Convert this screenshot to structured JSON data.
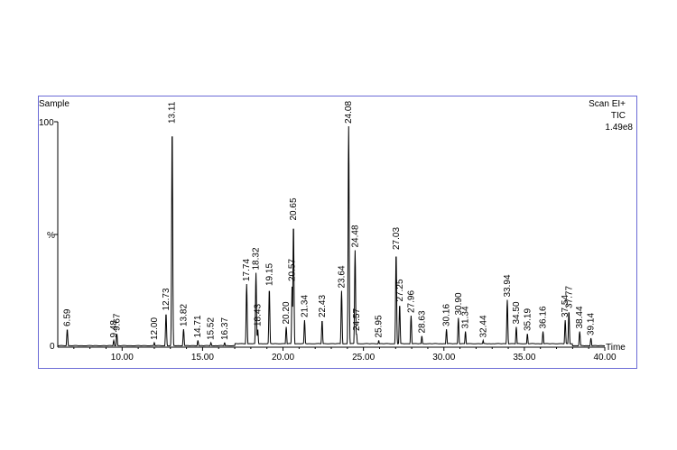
{
  "chart_data": {
    "type": "line",
    "sample_label": "Sample",
    "scan_label": "Scan  EI+",
    "tic_label": "TIC",
    "max_intensity": "1.49e8",
    "xlabel": "Time",
    "y_top_label": "100",
    "y_mid_label": "%",
    "y_bottom_label": "0",
    "xlim": [
      6.0,
      40.0
    ],
    "ylim": [
      0,
      100
    ],
    "x_ticks": [
      "10.00",
      "15.00",
      "20.00",
      "25.00",
      "30.00",
      "35.00",
      "40.00"
    ],
    "peaks": [
      {
        "rt": 6.59,
        "label": "6.59",
        "value": 8
      },
      {
        "rt": 9.48,
        "label": "9.48",
        "value": 3
      },
      {
        "rt": 9.67,
        "label": "9.67",
        "value": 6
      },
      {
        "rt": 12.0,
        "label": "12.00",
        "value": 2
      },
      {
        "rt": 12.73,
        "label": "12.73",
        "value": 15
      },
      {
        "rt": 13.11,
        "label": "13.11",
        "value": 98
      },
      {
        "rt": 13.82,
        "label": "13.82",
        "value": 8
      },
      {
        "rt": 14.71,
        "label": "14.71",
        "value": 3
      },
      {
        "rt": 15.52,
        "label": "15.52",
        "value": 2
      },
      {
        "rt": 16.37,
        "label": "16.37",
        "value": 2
      },
      {
        "rt": 17.74,
        "label": "17.74",
        "value": 28
      },
      {
        "rt": 18.32,
        "label": "18.32",
        "value": 33
      },
      {
        "rt": 18.43,
        "label": "18.43",
        "value": 8
      },
      {
        "rt": 19.15,
        "label": "19.15",
        "value": 26
      },
      {
        "rt": 20.2,
        "label": "20.20",
        "value": 9
      },
      {
        "rt": 20.57,
        "label": "20.57",
        "value": 28
      },
      {
        "rt": 20.65,
        "label": "20.65",
        "value": 55
      },
      {
        "rt": 21.34,
        "label": "21.34",
        "value": 12
      },
      {
        "rt": 22.43,
        "label": "22.43",
        "value": 12
      },
      {
        "rt": 23.64,
        "label": "23.64",
        "value": 25
      },
      {
        "rt": 24.08,
        "label": "24.08",
        "value": 98
      },
      {
        "rt": 24.48,
        "label": "24.48",
        "value": 43
      },
      {
        "rt": 24.57,
        "label": "24.57",
        "value": 6
      },
      {
        "rt": 25.95,
        "label": "25.95",
        "value": 3
      },
      {
        "rt": 27.03,
        "label": "27.03",
        "value": 42
      },
      {
        "rt": 27.25,
        "label": "27.25",
        "value": 19
      },
      {
        "rt": 27.96,
        "label": "27.96",
        "value": 14
      },
      {
        "rt": 28.63,
        "label": "28.63",
        "value": 5
      },
      {
        "rt": 30.16,
        "label": "30.16",
        "value": 8
      },
      {
        "rt": 30.9,
        "label": "30.90",
        "value": 13
      },
      {
        "rt": 31.34,
        "label": "31.34",
        "value": 7
      },
      {
        "rt": 32.44,
        "label": "32.44",
        "value": 3
      },
      {
        "rt": 33.94,
        "label": "33.94",
        "value": 21
      },
      {
        "rt": 34.5,
        "label": "34.50",
        "value": 9
      },
      {
        "rt": 35.19,
        "label": "35.19",
        "value": 6
      },
      {
        "rt": 36.16,
        "label": "36.16",
        "value": 7
      },
      {
        "rt": 37.54,
        "label": "37.54",
        "value": 12
      },
      {
        "rt": 37.77,
        "label": "37.77",
        "value": 16
      },
      {
        "rt": 38.44,
        "label": "38.44",
        "value": 7
      },
      {
        "rt": 39.14,
        "label": "39.14",
        "value": 4
      }
    ],
    "colors": {
      "trace": "#000000",
      "frame": "#6b6bd6"
    }
  }
}
